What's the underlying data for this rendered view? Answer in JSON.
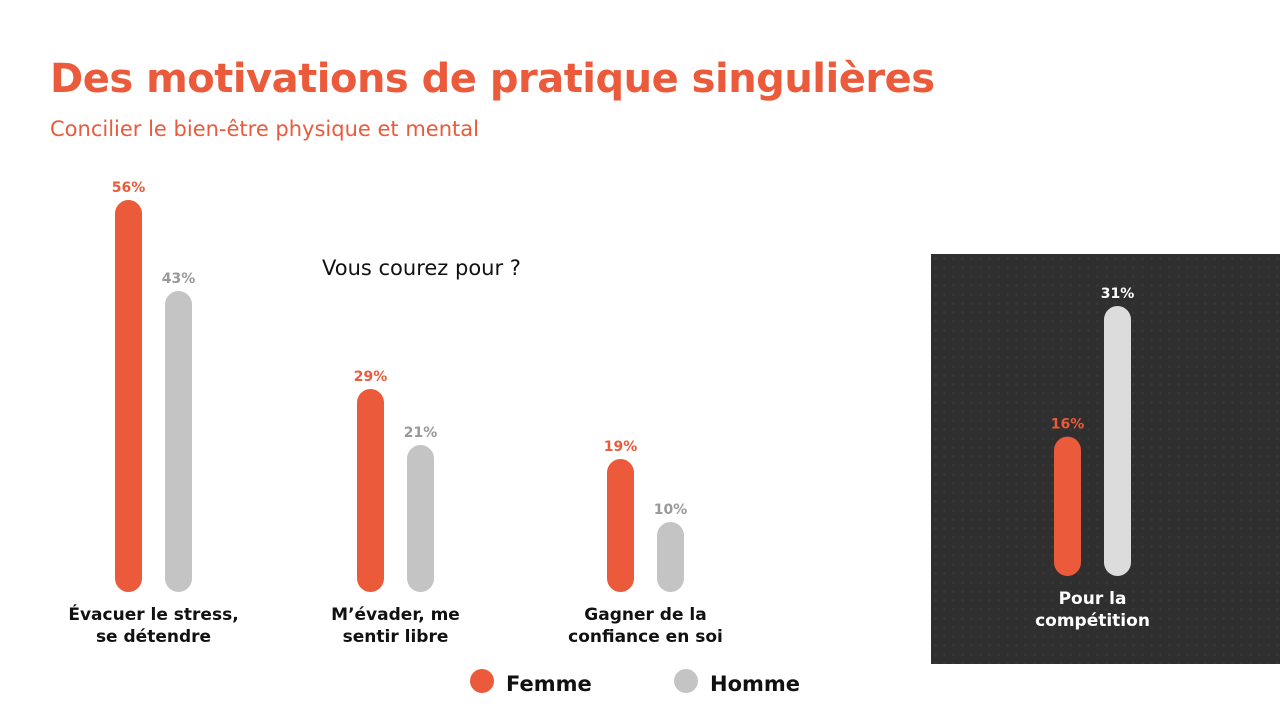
{
  "header": {
    "title": "Des motivations de pratique singulières",
    "subtitle": "Concilier le bien-être physique et mental"
  },
  "question": "Vous courez pour ?",
  "colors": {
    "femme": "#ea5a3b",
    "homme_main": "#c4c4c4",
    "homme_panel": "#dcdcdc",
    "panel_bg": "#2f2f2f"
  },
  "chart_data": [
    {
      "type": "bar",
      "categories": [
        "Évacuer le stress,\nse détendre",
        "M’évader, me\nsentir libre",
        "Gagner de la\nconfiance en soi"
      ],
      "series": [
        {
          "name": "Femme",
          "values": [
            56,
            29,
            19
          ],
          "labels": [
            "56%",
            "29%",
            "19%"
          ]
        },
        {
          "name": "Homme",
          "values": [
            43,
            21,
            10
          ],
          "labels": [
            "43%",
            "21%",
            "10%"
          ]
        }
      ],
      "ylim": [
        0,
        56
      ]
    },
    {
      "type": "bar",
      "categories": [
        "Pour la\ncompétition"
      ],
      "series": [
        {
          "name": "Femme",
          "values": [
            16
          ],
          "labels": [
            "16%"
          ]
        },
        {
          "name": "Homme",
          "values": [
            31
          ],
          "labels": [
            "31%"
          ]
        }
      ],
      "ylim": [
        0,
        31
      ]
    }
  ],
  "legend": {
    "femme": "Femme",
    "homme": "Homme"
  }
}
